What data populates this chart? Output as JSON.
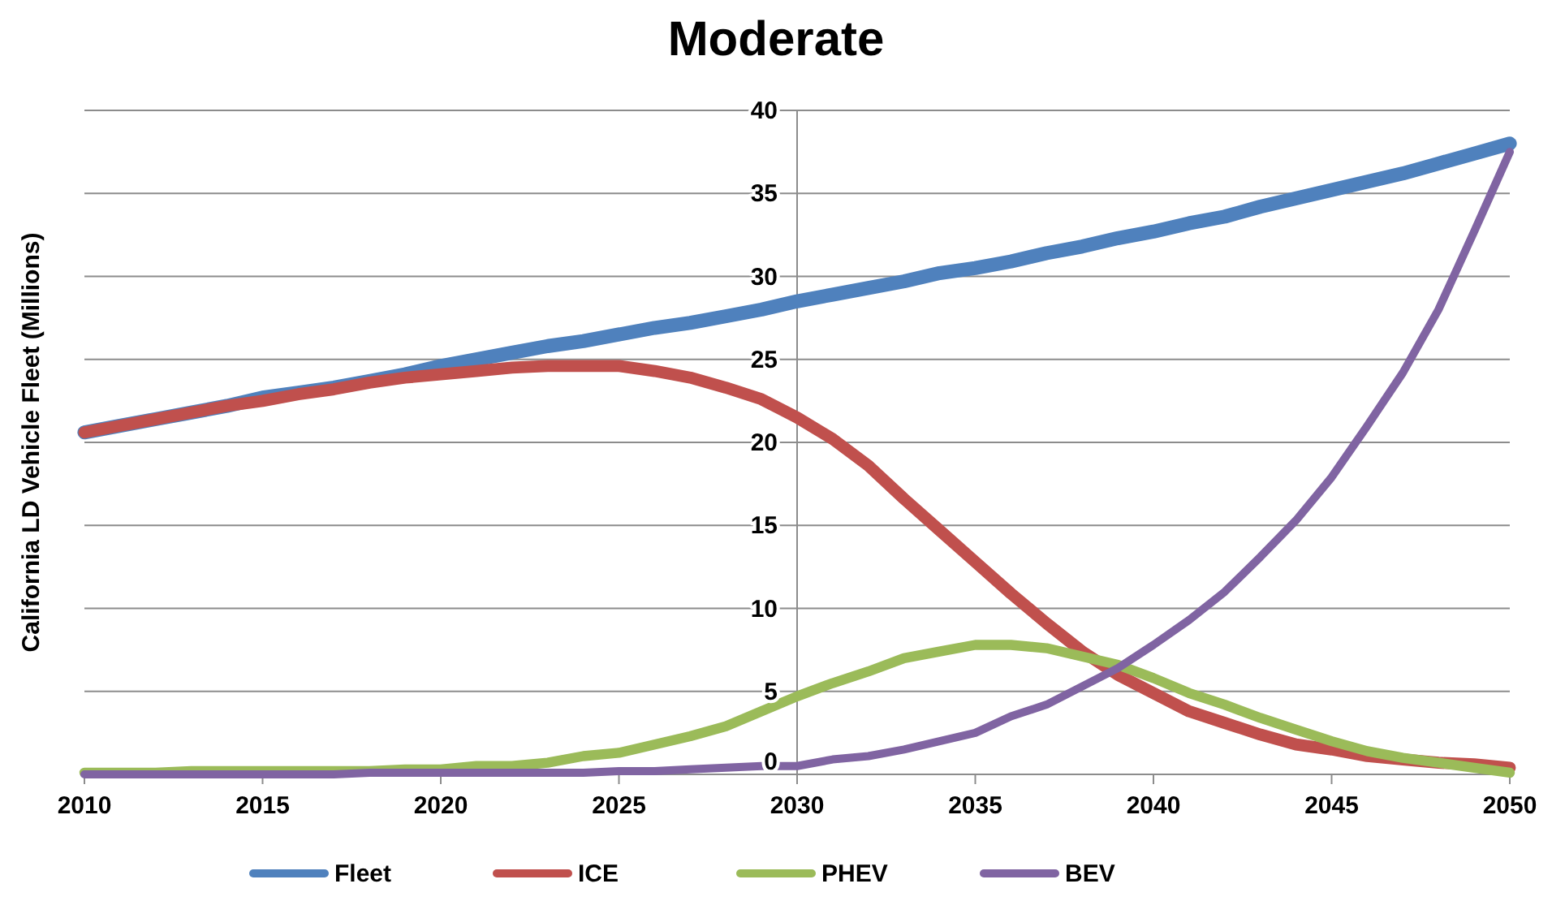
{
  "chart_data": {
    "type": "line",
    "title": "Moderate",
    "ylabel": "California LD Vehicle Fleet (Millions)",
    "x": [
      2010,
      2011,
      2012,
      2013,
      2014,
      2015,
      2016,
      2017,
      2018,
      2019,
      2020,
      2021,
      2022,
      2023,
      2024,
      2025,
      2026,
      2027,
      2028,
      2029,
      2030,
      2031,
      2032,
      2033,
      2034,
      2035,
      2036,
      2037,
      2038,
      2039,
      2040,
      2041,
      2042,
      2043,
      2044,
      2045,
      2046,
      2047,
      2048,
      2049,
      2050
    ],
    "series": [
      {
        "name": "Fleet",
        "color": "#4f81bd",
        "values": [
          20.6,
          21.0,
          21.4,
          21.8,
          22.2,
          22.7,
          23.0,
          23.3,
          23.7,
          24.1,
          24.6,
          25.0,
          25.4,
          25.8,
          26.1,
          26.5,
          26.9,
          27.2,
          27.6,
          28.0,
          28.5,
          28.9,
          29.3,
          29.7,
          30.2,
          30.5,
          30.9,
          31.4,
          31.8,
          32.3,
          32.7,
          33.2,
          33.6,
          34.2,
          34.7,
          35.2,
          35.7,
          36.2,
          36.8,
          37.4,
          38.0
        ]
      },
      {
        "name": "ICE",
        "color": "#c0504d",
        "values": [
          20.6,
          21.0,
          21.4,
          21.8,
          22.2,
          22.5,
          22.9,
          23.2,
          23.6,
          23.9,
          24.1,
          24.3,
          24.5,
          24.6,
          24.6,
          24.6,
          24.3,
          23.9,
          23.3,
          22.6,
          21.5,
          20.2,
          18.6,
          16.6,
          14.7,
          12.8,
          10.9,
          9.1,
          7.4,
          6.0,
          4.9,
          3.8,
          3.1,
          2.4,
          1.8,
          1.5,
          1.1,
          0.9,
          0.7,
          0.6,
          0.4
        ]
      },
      {
        "name": "PHEV",
        "color": "#9bbb59",
        "values": [
          0.1,
          0.1,
          0.1,
          0.2,
          0.2,
          0.2,
          0.2,
          0.2,
          0.2,
          0.3,
          0.3,
          0.5,
          0.5,
          0.7,
          1.1,
          1.3,
          1.8,
          2.3,
          2.9,
          3.8,
          4.7,
          5.5,
          6.2,
          7.0,
          7.4,
          7.8,
          7.8,
          7.6,
          7.1,
          6.6,
          5.8,
          4.9,
          4.2,
          3.4,
          2.7,
          2.0,
          1.4,
          1.0,
          0.7,
          0.4,
          0.1
        ]
      },
      {
        "name": "BEV",
        "color": "#8064a2",
        "values": [
          0.0,
          0.0,
          0.0,
          0.0,
          0.0,
          0.0,
          0.0,
          0.0,
          0.1,
          0.1,
          0.1,
          0.1,
          0.1,
          0.1,
          0.1,
          0.2,
          0.2,
          0.3,
          0.4,
          0.5,
          0.5,
          0.9,
          1.1,
          1.5,
          2.0,
          2.5,
          3.5,
          4.2,
          5.3,
          6.4,
          7.8,
          9.3,
          11.0,
          13.1,
          15.3,
          17.9,
          21.0,
          24.2,
          28.0,
          32.7,
          37.5
        ]
      }
    ],
    "xlim": [
      2010,
      2050
    ],
    "xticks": [
      2010,
      2015,
      2020,
      2025,
      2030,
      2035,
      2040,
      2045,
      2050
    ],
    "ylim": [
      0,
      40
    ],
    "yticks": [
      0,
      5,
      10,
      15,
      20,
      25,
      30,
      35,
      40
    ],
    "grid": "y",
    "legend": "bottom",
    "marker": "none",
    "line_style": "solid"
  }
}
